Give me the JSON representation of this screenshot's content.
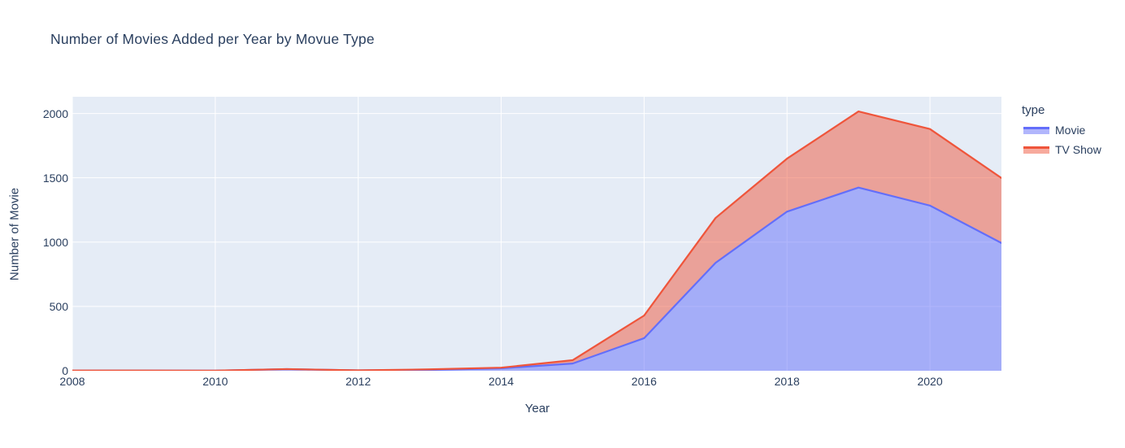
{
  "chart_data": {
    "type": "area",
    "stacked": true,
    "title": "Number of Movies Added per Year by Movue Type",
    "xlabel": "Year",
    "ylabel": "Number of Movie",
    "legend_title": "type",
    "legend_position": "right",
    "grid": true,
    "x": [
      2008,
      2009,
      2010,
      2011,
      2012,
      2013,
      2014,
      2015,
      2016,
      2017,
      2018,
      2019,
      2020,
      2021
    ],
    "series": [
      {
        "name": "Movie",
        "line_color": "#636efa",
        "fill_color": "rgba(99,110,250,0.5)",
        "values": [
          1,
          2,
          1,
          13,
          3,
          6,
          19,
          56,
          253,
          839,
          1237,
          1424,
          1284,
          993
        ]
      },
      {
        "name": "TV Show",
        "line_color": "#ef553b",
        "fill_color": "rgba(239,85,59,0.5)",
        "values": [
          1,
          0,
          0,
          0,
          0,
          5,
          5,
          26,
          176,
          349,
          412,
          592,
          595,
          505
        ]
      }
    ],
    "xlim": [
      2008,
      2021
    ],
    "ylim": [
      0,
      2130
    ],
    "x_ticks": [
      2008,
      2010,
      2012,
      2014,
      2016,
      2018,
      2020
    ],
    "y_ticks": [
      0,
      500,
      1000,
      1500,
      2000
    ],
    "plot_bg": "#e5ecf6",
    "grid_color": "#ffffff",
    "text_color": "#2a3f5f",
    "paper_bg": "#ffffff"
  }
}
